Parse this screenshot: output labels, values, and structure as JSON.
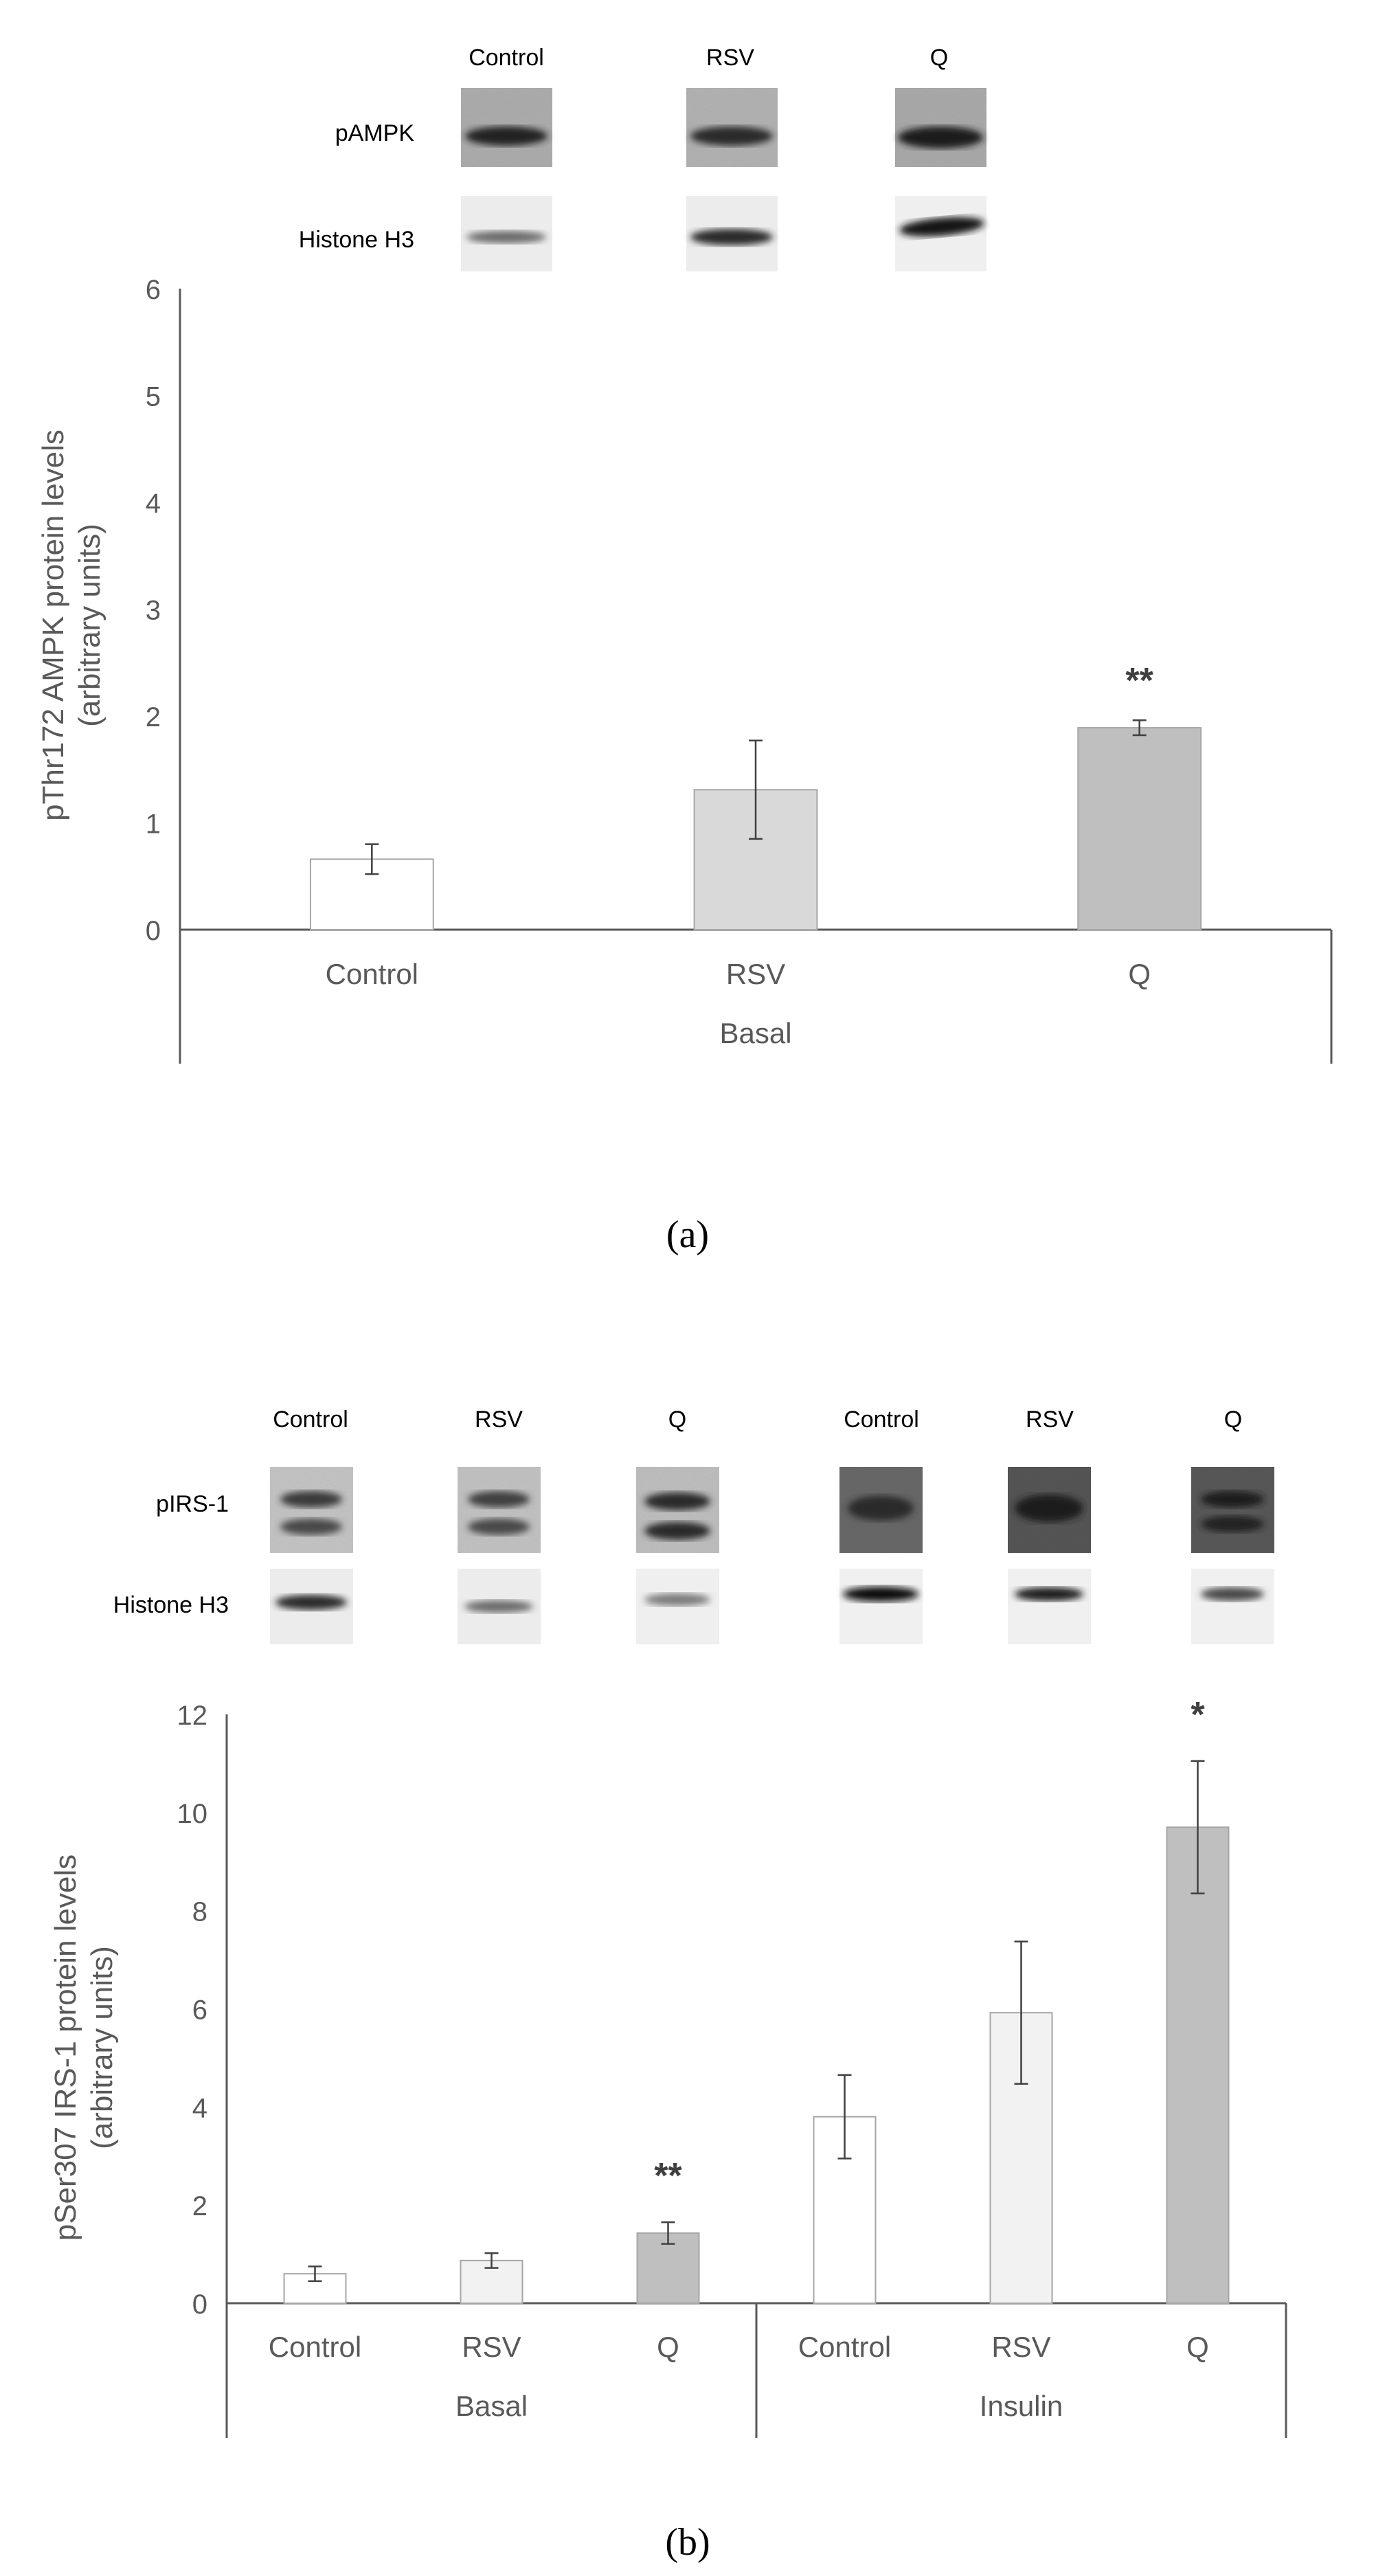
{
  "colors": {
    "control": "#ffffff",
    "rsv_a": "#d9d9d9",
    "rsv_b": "#f2f2f2",
    "q": "#bfbfbf",
    "bar_stroke": "#a6a6a6",
    "axis": "#595959",
    "text": "#595959",
    "blot_text": "#000000"
  },
  "panel_a": {
    "caption": "(a)",
    "blot": {
      "lanes": [
        "Control",
        "RSV",
        "Q"
      ],
      "rows": [
        "pAMPK",
        "Histone H3"
      ]
    }
  },
  "panel_b": {
    "caption": "(b)",
    "blot": {
      "lanes": [
        "Control",
        "RSV",
        "Q",
        "Control",
        "RSV",
        "Q"
      ],
      "rows": [
        "pIRS-1",
        "Histone H3"
      ]
    }
  },
  "chart_data": [
    {
      "type": "bar",
      "panel": "a",
      "ylabel": "pThr172 AMPK protein levels (arbitrary units)",
      "ylabel_lines": [
        "pThr172 AMPK protein levels",
        "(arbitrary units)"
      ],
      "ylim": [
        0,
        6
      ],
      "yticks": [
        0,
        1,
        2,
        3,
        4,
        5,
        6
      ],
      "groups": [
        {
          "label": "Basal",
          "categories": [
            "Control",
            "RSV",
            "Q"
          ],
          "values": [
            0.66,
            1.31,
            1.89
          ],
          "errors": [
            0.14,
            0.46,
            0.07
          ],
          "significance": [
            "",
            "",
            "**"
          ],
          "colors": [
            "#ffffff",
            "#d9d9d9",
            "#bfbfbf"
          ]
        }
      ]
    },
    {
      "type": "bar",
      "panel": "b",
      "ylabel": "pSer307 IRS-1 protein levels (arbitrary units)",
      "ylabel_lines": [
        "pSer307 IRS-1 protein levels",
        "(arbitrary units)"
      ],
      "ylim": [
        0,
        12
      ],
      "yticks": [
        0,
        2,
        4,
        6,
        8,
        10,
        12
      ],
      "groups": [
        {
          "label": "Basal",
          "categories": [
            "Control",
            "RSV",
            "Q"
          ],
          "values": [
            0.6,
            0.87,
            1.43
          ],
          "errors": [
            0.15,
            0.15,
            0.22
          ],
          "significance": [
            "",
            "",
            "**"
          ],
          "colors": [
            "#ffffff",
            "#f2f2f2",
            "#bfbfbf"
          ]
        },
        {
          "label": "Insulin",
          "categories": [
            "Control",
            "RSV",
            "Q"
          ],
          "values": [
            3.8,
            5.92,
            9.7
          ],
          "errors": [
            0.85,
            1.45,
            1.35
          ],
          "significance": [
            "",
            "",
            "*"
          ],
          "colors": [
            "#ffffff",
            "#f2f2f2",
            "#bfbfbf"
          ]
        }
      ]
    }
  ]
}
